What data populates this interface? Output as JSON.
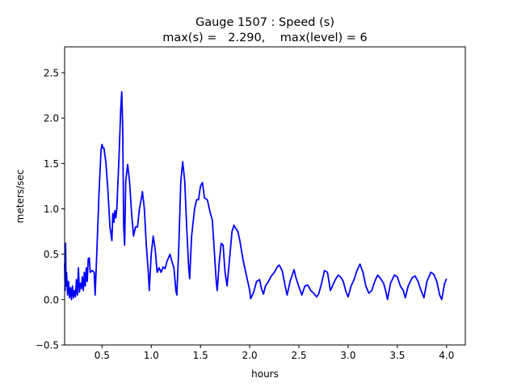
{
  "chart_data": {
    "type": "line",
    "title": "Gauge 1507 : Speed (s)",
    "subtitle": "max(s) =   2.290,    max(level) = 6",
    "xlabel": "hours",
    "ylabel": "meters/sec",
    "xlim": [
      0.12,
      4.19
    ],
    "ylim": [
      -0.5,
      2.785
    ],
    "xticks": [
      "0.5",
      "1.0",
      "1.5",
      "2.0",
      "2.5",
      "3.0",
      "3.5",
      "4.0"
    ],
    "yticks": [
      "−0.5",
      "0.0",
      "0.5",
      "1.0",
      "1.5",
      "2.0",
      "2.5"
    ],
    "grid": false,
    "series": [
      {
        "color": "#0000ff",
        "x": [
          0.12,
          0.125,
          0.13,
          0.135,
          0.14,
          0.15,
          0.16,
          0.17,
          0.18,
          0.19,
          0.2,
          0.21,
          0.22,
          0.23,
          0.24,
          0.25,
          0.26,
          0.27,
          0.28,
          0.29,
          0.3,
          0.31,
          0.32,
          0.33,
          0.34,
          0.35,
          0.36,
          0.37,
          0.38,
          0.4,
          0.42,
          0.43,
          0.45,
          0.47,
          0.49,
          0.5,
          0.51,
          0.52,
          0.54,
          0.56,
          0.58,
          0.6,
          0.61,
          0.62,
          0.63,
          0.64,
          0.65,
          0.67,
          0.69,
          0.7,
          0.71,
          0.72,
          0.73,
          0.74,
          0.76,
          0.78,
          0.8,
          0.82,
          0.84,
          0.86,
          0.88,
          0.9,
          0.91,
          0.93,
          0.95,
          0.97,
          0.98,
          1.0,
          1.02,
          1.04,
          1.06,
          1.08,
          1.1,
          1.12,
          1.14,
          1.16,
          1.19,
          1.21,
          1.23,
          1.25,
          1.26,
          1.28,
          1.3,
          1.32,
          1.34,
          1.36,
          1.38,
          1.39,
          1.41,
          1.44,
          1.46,
          1.48,
          1.5,
          1.52,
          1.54,
          1.57,
          1.6,
          1.62,
          1.64,
          1.66,
          1.67,
          1.69,
          1.71,
          1.73,
          1.75,
          1.77,
          1.8,
          1.82,
          1.84,
          1.86,
          1.88,
          1.9,
          1.93,
          1.95,
          1.98,
          2.0,
          2.01,
          2.04,
          2.07,
          2.1,
          2.12,
          2.14,
          2.16,
          2.19,
          2.22,
          2.25,
          2.28,
          2.3,
          2.33,
          2.36,
          2.38,
          2.41,
          2.45,
          2.47,
          2.5,
          2.53,
          2.56,
          2.59,
          2.62,
          2.65,
          2.68,
          2.7,
          2.73,
          2.76,
          2.79,
          2.82,
          2.84,
          2.87,
          2.9,
          2.93,
          2.95,
          2.98,
          3.0,
          3.03,
          3.06,
          3.09,
          3.12,
          3.15,
          3.18,
          3.21,
          3.24,
          3.27,
          3.3,
          3.33,
          3.36,
          3.38,
          3.4,
          3.43,
          3.47,
          3.5,
          3.53,
          3.56,
          3.58,
          3.61,
          3.65,
          3.68,
          3.71,
          3.74,
          3.77,
          3.8,
          3.84,
          3.87,
          3.9,
          3.93,
          3.95,
          3.98,
          4.0
        ],
        "y": [
          0.4,
          0.1,
          0.62,
          0.15,
          0.3,
          0.05,
          0.2,
          0.02,
          0.13,
          0.0,
          0.15,
          0.02,
          0.1,
          0.03,
          0.22,
          0.05,
          0.35,
          0.08,
          0.18,
          0.12,
          0.25,
          0.1,
          0.3,
          0.15,
          0.35,
          0.2,
          0.45,
          0.46,
          0.3,
          0.32,
          0.3,
          0.05,
          0.6,
          1.2,
          1.65,
          1.71,
          1.67,
          1.67,
          1.5,
          1.2,
          0.8,
          0.65,
          0.95,
          0.85,
          0.98,
          0.9,
          1.0,
          1.5,
          2.1,
          2.29,
          1.9,
          0.8,
          0.6,
          1.3,
          1.49,
          1.3,
          0.95,
          0.7,
          0.8,
          0.8,
          1.0,
          1.12,
          1.19,
          1.0,
          0.6,
          0.3,
          0.1,
          0.5,
          0.7,
          0.55,
          0.3,
          0.35,
          0.3,
          0.36,
          0.34,
          0.42,
          0.5,
          0.42,
          0.35,
          0.1,
          0.05,
          0.6,
          1.3,
          1.52,
          1.3,
          0.8,
          0.35,
          0.23,
          0.7,
          1.0,
          1.1,
          1.1,
          1.25,
          1.29,
          1.12,
          1.1,
          0.95,
          0.88,
          0.55,
          0.2,
          0.1,
          0.4,
          0.62,
          0.6,
          0.3,
          0.15,
          0.5,
          0.75,
          0.82,
          0.78,
          0.75,
          0.65,
          0.45,
          0.35,
          0.2,
          0.1,
          0.01,
          0.08,
          0.2,
          0.22,
          0.12,
          0.06,
          0.15,
          0.2,
          0.26,
          0.3,
          0.36,
          0.38,
          0.32,
          0.15,
          0.05,
          0.2,
          0.33,
          0.24,
          0.14,
          0.05,
          0.15,
          0.16,
          0.1,
          0.07,
          0.03,
          0.06,
          0.18,
          0.32,
          0.3,
          0.1,
          0.15,
          0.22,
          0.27,
          0.24,
          0.2,
          0.08,
          0.03,
          0.15,
          0.22,
          0.32,
          0.39,
          0.3,
          0.15,
          0.07,
          0.1,
          0.2,
          0.27,
          0.23,
          0.18,
          0.1,
          0.0,
          0.18,
          0.27,
          0.25,
          0.15,
          0.1,
          0.02,
          0.15,
          0.24,
          0.26,
          0.2,
          0.1,
          0.02,
          0.2,
          0.3,
          0.28,
          0.2,
          0.05,
          0.0,
          0.18,
          0.23
        ]
      }
    ]
  }
}
